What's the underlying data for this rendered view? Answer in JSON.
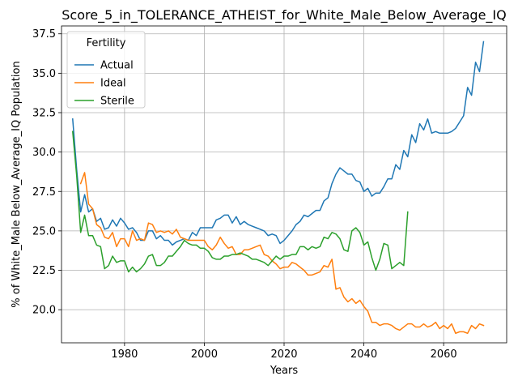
{
  "chart_data": {
    "type": "line",
    "title": "Score_5_in_TOLERANCE_ATHEIST_for_White_Male_Below_Average_IQ",
    "xlabel": "Years",
    "ylabel": "% of White_Male Below_Average_IQ Population",
    "xlim": [
      1964.2,
      2075.8
    ],
    "ylim": [
      17.9,
      38.0
    ],
    "x_ticks": [
      1980,
      2000,
      2020,
      2040,
      2060
    ],
    "x_tick_labels": [
      "1980",
      "2000",
      "2020",
      "2040",
      "2060"
    ],
    "y_ticks": [
      20.0,
      22.5,
      25.0,
      27.5,
      30.0,
      32.5,
      35.0,
      37.5
    ],
    "y_tick_labels": [
      "20.0",
      "22.5",
      "25.0",
      "27.5",
      "30.0",
      "32.5",
      "35.0",
      "37.5"
    ],
    "grid": true,
    "legend": {
      "title": "Fertility",
      "position": "top-left"
    },
    "series": [
      {
        "name": "Actual",
        "color": "#1f77b4",
        "x": [
          1967,
          1968,
          1969,
          1970,
          1971,
          1972,
          1973,
          1974,
          1975,
          1976,
          1977,
          1978,
          1979,
          1980,
          1981,
          1982,
          1983,
          1984,
          1985,
          1986,
          1987,
          1988,
          1989,
          1990,
          1991,
          1992,
          1993,
          1994,
          1995,
          1996,
          1997,
          1998,
          1999,
          2000,
          2001,
          2002,
          2003,
          2004,
          2005,
          2006,
          2007,
          2008,
          2009,
          2010,
          2011,
          2012,
          2013,
          2014,
          2015,
          2016,
          2017,
          2018,
          2019,
          2020,
          2021,
          2022,
          2023,
          2024,
          2025,
          2026,
          2027,
          2028,
          2029,
          2030,
          2031,
          2032,
          2033,
          2034,
          2035,
          2036,
          2037,
          2038,
          2039,
          2040,
          2041,
          2042,
          2043,
          2044,
          2045,
          2046,
          2047,
          2048,
          2049,
          2050,
          2051,
          2052,
          2053,
          2054,
          2055,
          2056,
          2057,
          2058,
          2059,
          2060,
          2061,
          2062,
          2063,
          2064,
          2065,
          2066,
          2067,
          2068,
          2069,
          2070
        ],
        "y": [
          32.1,
          28.9,
          26.2,
          27.3,
          26.2,
          26.4,
          25.6,
          25.8,
          25.1,
          25.2,
          25.7,
          25.3,
          25.8,
          25.5,
          25.1,
          25.2,
          24.9,
          24.4,
          24.4,
          25.0,
          25.0,
          24.5,
          24.7,
          24.4,
          24.4,
          24.1,
          24.3,
          24.4,
          24.5,
          24.4,
          24.9,
          24.7,
          25.2,
          25.2,
          25.2,
          25.2,
          25.7,
          25.8,
          26.0,
          26.0,
          25.5,
          25.9,
          25.4,
          25.6,
          25.4,
          25.3,
          25.2,
          25.1,
          25.0,
          24.7,
          24.8,
          24.7,
          24.2,
          24.4,
          24.7,
          25.0,
          25.4,
          25.6,
          26.0,
          25.9,
          26.1,
          26.3,
          26.3,
          26.9,
          27.1,
          28.0,
          28.6,
          29.0,
          28.8,
          28.6,
          28.6,
          28.2,
          28.1,
          27.5,
          27.7,
          27.2,
          27.4,
          27.4,
          27.8,
          28.3,
          28.3,
          29.2,
          28.9,
          30.1,
          29.7,
          31.1,
          30.6,
          31.8,
          31.4,
          32.1,
          31.2,
          31.3,
          31.2,
          31.2,
          31.2,
          31.3,
          31.5,
          31.9,
          32.3,
          34.1,
          33.6,
          35.7,
          35.1,
          37.0
        ]
      },
      {
        "name": "Ideal",
        "color": "#ff7f0e",
        "x": [
          1969,
          1970,
          1971,
          1972,
          1973,
          1974,
          1975,
          1976,
          1977,
          1978,
          1979,
          1980,
          1981,
          1982,
          1983,
          1984,
          1985,
          1986,
          1987,
          1988,
          1989,
          1990,
          1991,
          1992,
          1993,
          1994,
          1995,
          1996,
          1997,
          1998,
          1999,
          2000,
          2001,
          2002,
          2003,
          2004,
          2005,
          2006,
          2007,
          2008,
          2009,
          2010,
          2011,
          2012,
          2013,
          2014,
          2015,
          2016,
          2017,
          2018,
          2019,
          2020,
          2021,
          2022,
          2023,
          2024,
          2025,
          2026,
          2027,
          2028,
          2029,
          2030,
          2031,
          2032,
          2033,
          2034,
          2035,
          2036,
          2037,
          2038,
          2039,
          2040,
          2041,
          2042,
          2043,
          2044,
          2045,
          2046,
          2047,
          2048,
          2049,
          2050,
          2051,
          2052,
          2053,
          2054,
          2055,
          2056,
          2057,
          2058,
          2059,
          2060,
          2061,
          2062,
          2063,
          2064,
          2065,
          2066,
          2067,
          2068,
          2069,
          2070
        ],
        "y": [
          28.0,
          28.7,
          26.7,
          26.4,
          25.4,
          25.2,
          24.6,
          24.5,
          24.9,
          24.0,
          24.5,
          24.5,
          24.0,
          25.0,
          24.4,
          24.5,
          24.4,
          25.5,
          25.4,
          24.9,
          25.0,
          24.9,
          25.0,
          24.8,
          25.1,
          24.6,
          24.5,
          24.4,
          24.4,
          24.4,
          24.4,
          24.4,
          24.0,
          23.8,
          24.1,
          24.6,
          24.2,
          23.9,
          24.0,
          23.5,
          23.5,
          23.8,
          23.8,
          23.9,
          24.0,
          24.1,
          23.5,
          23.4,
          23.1,
          22.9,
          22.6,
          22.7,
          22.7,
          23.0,
          22.9,
          22.7,
          22.5,
          22.2,
          22.2,
          22.3,
          22.4,
          22.8,
          22.7,
          23.2,
          21.3,
          21.4,
          20.8,
          20.5,
          20.7,
          20.4,
          20.6,
          20.2,
          19.9,
          19.2,
          19.2,
          19.0,
          19.1,
          19.1,
          19.0,
          18.8,
          18.7,
          18.9,
          19.1,
          19.1,
          18.9,
          18.9,
          19.1,
          18.9,
          19.0,
          19.2,
          18.8,
          19.0,
          18.8,
          19.1,
          18.5,
          18.6,
          18.6,
          18.5,
          19.0,
          18.8,
          19.1,
          19.0
        ]
      },
      {
        "name": "Sterile",
        "color": "#2ca02c",
        "x": [
          1967,
          1968,
          1969,
          1970,
          1971,
          1972,
          1973,
          1974,
          1975,
          1976,
          1977,
          1978,
          1979,
          1980,
          1981,
          1982,
          1983,
          1984,
          1985,
          1986,
          1987,
          1988,
          1989,
          1990,
          1991,
          1992,
          1993,
          1994,
          1995,
          1996,
          1997,
          1998,
          1999,
          2000,
          2001,
          2002,
          2003,
          2004,
          2005,
          2006,
          2007,
          2008,
          2009,
          2010,
          2011,
          2012,
          2013,
          2014,
          2015,
          2016,
          2017,
          2018,
          2019,
          2020,
          2021,
          2022,
          2023,
          2024,
          2025,
          2026,
          2027,
          2028,
          2029,
          2030,
          2031,
          2032,
          2033,
          2034,
          2035,
          2036,
          2037,
          2038,
          2039,
          2040,
          2041,
          2042,
          2043,
          2044,
          2045,
          2046,
          2047,
          2048,
          2049,
          2050,
          2051
        ],
        "y": [
          31.3,
          28.5,
          24.9,
          26.0,
          24.7,
          24.7,
          24.1,
          24.0,
          22.6,
          22.8,
          23.4,
          23.0,
          23.1,
          23.1,
          22.4,
          22.7,
          22.4,
          22.6,
          22.9,
          23.4,
          23.5,
          22.8,
          22.8,
          23.0,
          23.4,
          23.4,
          23.7,
          24.0,
          24.4,
          24.2,
          24.1,
          24.1,
          23.9,
          23.9,
          23.7,
          23.3,
          23.2,
          23.2,
          23.4,
          23.4,
          23.5,
          23.5,
          23.6,
          23.5,
          23.4,
          23.2,
          23.2,
          23.1,
          23.0,
          22.8,
          23.1,
          23.4,
          23.2,
          23.4,
          23.4,
          23.5,
          23.5,
          24.0,
          24.0,
          23.8,
          24.0,
          23.9,
          24.0,
          24.6,
          24.5,
          24.9,
          24.8,
          24.5,
          23.8,
          23.7,
          25.0,
          25.2,
          24.9,
          24.1,
          24.3,
          23.3,
          22.5,
          23.2,
          24.2,
          24.1,
          22.6,
          22.8,
          23.0,
          22.8,
          26.2
        ]
      }
    ]
  }
}
